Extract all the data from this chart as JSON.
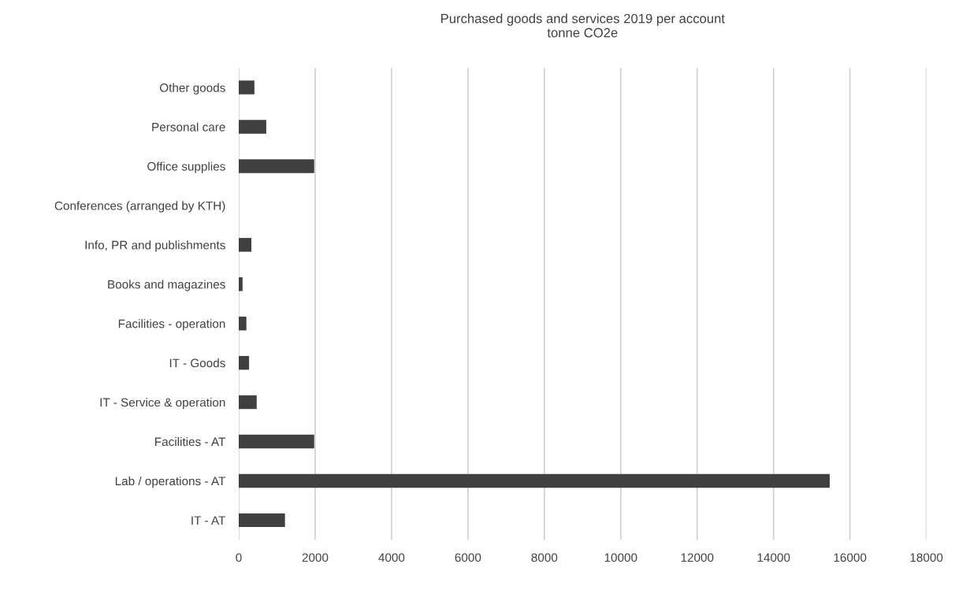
{
  "chart_data": {
    "type": "bar",
    "orientation": "horizontal",
    "title": "Purchased goods and services 2019 per account\ntonne CO2e",
    "categories": [
      "Other goods",
      "Personal care",
      "Office supplies",
      "Conferences (arranged by KTH)",
      "Info, PR and publishments",
      "Books and magazines",
      "Facilities - operation",
      "IT - Goods",
      "IT - Service & operation",
      "Facilities - AT",
      "Lab / operations - AT",
      "IT - AT"
    ],
    "values": [
      410,
      720,
      1975,
      0,
      330,
      100,
      200,
      270,
      470,
      1975,
      15470,
      1210
    ],
    "color": "#404040",
    "xlim": [
      0,
      18000
    ],
    "xticks": [
      0,
      2000,
      4000,
      6000,
      8000,
      10000,
      12000,
      14000,
      16000,
      18000
    ],
    "grid": "x",
    "legend": false
  }
}
